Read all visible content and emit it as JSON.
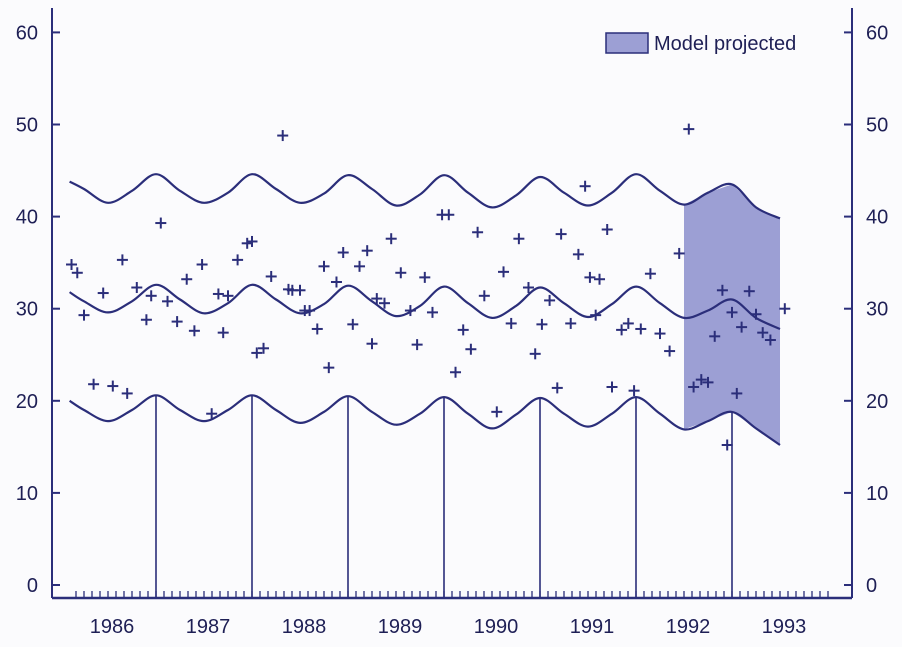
{
  "chart_data": {
    "type": "scatter",
    "title": "",
    "xlabel": "",
    "ylabel": "",
    "ylim": [
      0,
      62
    ],
    "xlim": [
      1985.5,
      1994.0
    ],
    "y_ticks": [
      0,
      10,
      20,
      30,
      40,
      50,
      60
    ],
    "y_tick_labels": [
      "0",
      "10",
      "20",
      "30",
      "40",
      "50",
      "60"
    ],
    "x_ticks": [
      1986,
      1987,
      1988,
      1989,
      1990,
      1991,
      1992,
      1993
    ],
    "x_tick_labels": [
      "1986",
      "1987",
      "1988",
      "1989",
      "1990",
      "1991",
      "1992",
      "1993"
    ],
    "grid": false,
    "colors": {
      "ink": "#2b2e7a",
      "projected_fill": "#9c9fd4"
    },
    "legend": {
      "label": "Model projected",
      "position": "top-right"
    },
    "projected_region": {
      "x_start": 1992.0,
      "x_end": 1993.0
    },
    "annual_markers": [
      1986.5,
      1987.5,
      1988.5,
      1989.5,
      1990.5,
      1991.5,
      1992.5
    ],
    "series": [
      {
        "kind": "band",
        "x": [
          1985.6,
          1985.75,
          1986.0,
          1986.25,
          1986.5,
          1986.75,
          1987.0,
          1987.25,
          1987.5,
          1987.75,
          1988.0,
          1988.25,
          1988.5,
          1988.75,
          1989.0,
          1989.25,
          1989.5,
          1989.75,
          1990.0,
          1990.25,
          1990.5,
          1990.75,
          1991.0,
          1991.25,
          1991.5,
          1991.75,
          1992.0,
          1992.25,
          1992.5,
          1992.75,
          1993.0
        ],
        "upper": [
          43.8,
          43.0,
          41.5,
          42.8,
          44.6,
          42.8,
          41.5,
          42.6,
          44.6,
          43.0,
          41.5,
          42.5,
          44.5,
          43.0,
          41.2,
          42.4,
          44.5,
          42.6,
          41.0,
          42.3,
          44.3,
          42.6,
          41.2,
          42.6,
          44.6,
          42.8,
          41.3,
          42.6,
          43.5,
          41.0,
          39.8
        ],
        "middle": [
          31.8,
          30.8,
          29.6,
          30.8,
          32.6,
          31.0,
          29.5,
          30.6,
          32.6,
          31.0,
          29.5,
          30.5,
          32.5,
          30.8,
          29.2,
          30.3,
          32.4,
          30.6,
          29.0,
          30.3,
          32.3,
          30.6,
          29.1,
          30.5,
          32.4,
          30.6,
          29.0,
          29.8,
          31.0,
          29.0,
          27.8
        ],
        "lower": [
          20.0,
          19.0,
          17.8,
          19.0,
          20.6,
          19.0,
          17.8,
          19.0,
          20.6,
          19.0,
          17.6,
          18.8,
          20.5,
          18.8,
          17.4,
          18.6,
          20.4,
          18.6,
          17.0,
          18.5,
          20.3,
          18.6,
          17.2,
          18.6,
          20.4,
          18.6,
          16.9,
          17.8,
          18.8,
          17.0,
          15.2
        ]
      },
      {
        "kind": "observed",
        "marker": "+",
        "x": [
          1985.62,
          1985.68,
          1985.75,
          1985.85,
          1985.95,
          1986.05,
          1986.15,
          1986.2,
          1986.3,
          1986.4,
          1986.45,
          1986.55,
          1986.62,
          1986.72,
          1986.82,
          1986.9,
          1986.98,
          1987.08,
          1987.15,
          1987.2,
          1987.25,
          1987.35,
          1987.45,
          1987.5,
          1987.55,
          1987.62,
          1987.7,
          1987.82,
          1987.88,
          1987.92,
          1988.0,
          1988.05,
          1988.1,
          1988.18,
          1988.25,
          1988.3,
          1988.38,
          1988.45,
          1988.55,
          1988.62,
          1988.7,
          1988.75,
          1988.8,
          1988.88,
          1988.95,
          1989.05,
          1989.15,
          1989.22,
          1989.3,
          1989.38,
          1989.48,
          1989.55,
          1989.62,
          1989.7,
          1989.78,
          1989.85,
          1989.92,
          1990.05,
          1990.12,
          1990.2,
          1990.28,
          1990.38,
          1990.45,
          1990.52,
          1990.6,
          1990.68,
          1990.72,
          1990.82,
          1990.9,
          1990.97,
          1991.02,
          1991.08,
          1991.12,
          1991.2,
          1991.25,
          1991.35,
          1991.42,
          1991.48,
          1991.55,
          1991.65,
          1991.75,
          1991.85,
          1991.95,
          1992.05,
          1992.1,
          1992.18,
          1992.25,
          1992.32,
          1992.4,
          1992.45,
          1992.5,
          1992.55,
          1992.6,
          1992.68,
          1992.75,
          1992.82,
          1992.9,
          1993.05
        ],
        "y": [
          34.8,
          33.9,
          29.3,
          21.8,
          31.7,
          21.6,
          35.3,
          20.8,
          32.3,
          28.8,
          31.4,
          39.3,
          30.8,
          28.6,
          33.2,
          27.6,
          34.8,
          18.6,
          31.6,
          27.4,
          31.4,
          35.3,
          37.1,
          37.3,
          25.2,
          25.7,
          33.5,
          48.8,
          32.1,
          32.0,
          32.0,
          29.8,
          29.8,
          27.8,
          34.6,
          23.6,
          32.9,
          36.1,
          28.3,
          34.6,
          36.3,
          26.2,
          31.1,
          30.6,
          37.6,
          33.9,
          29.8,
          26.1,
          33.4,
          29.6,
          40.2,
          40.2,
          23.1,
          27.7,
          25.6,
          38.3,
          31.4,
          18.8,
          34.0,
          28.4,
          37.6,
          32.3,
          25.1,
          28.3,
          30.9,
          21.4,
          38.1,
          28.4,
          35.9,
          43.3,
          33.4,
          29.3,
          33.2,
          38.6,
          21.5,
          27.7,
          28.4,
          21.1,
          27.8,
          33.8,
          27.3,
          25.4,
          36.0,
          49.5,
          21.5,
          22.3,
          22.0,
          27.0,
          32.0,
          15.2,
          29.6,
          20.8,
          28.0,
          31.9,
          29.4,
          27.4,
          26.6,
          30.0
        ]
      }
    ]
  }
}
